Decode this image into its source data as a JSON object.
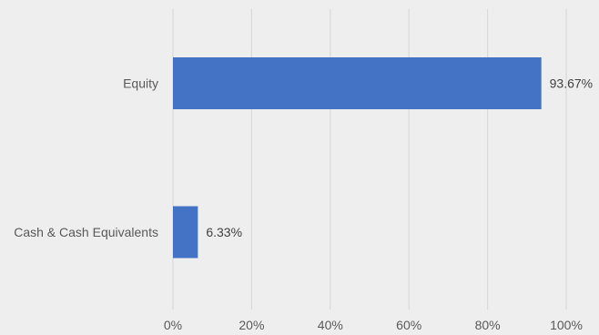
{
  "chart_data": {
    "type": "bar",
    "orientation": "horizontal",
    "categories": [
      "Equity",
      "Cash & Cash Equivalents"
    ],
    "values": [
      93.67,
      6.33
    ],
    "data_labels": [
      "93.67%",
      "6.33%"
    ],
    "xlim": [
      0,
      100
    ],
    "x_ticks": [
      0,
      20,
      40,
      60,
      80,
      100
    ],
    "x_tick_labels": [
      "0%",
      "20%",
      "40%",
      "60%",
      "80%",
      "100%"
    ],
    "grid": true,
    "legend": "none",
    "colors": {
      "bar": "#4472c4",
      "background": "#eeeeee",
      "grid": "#d9d9d9"
    }
  }
}
